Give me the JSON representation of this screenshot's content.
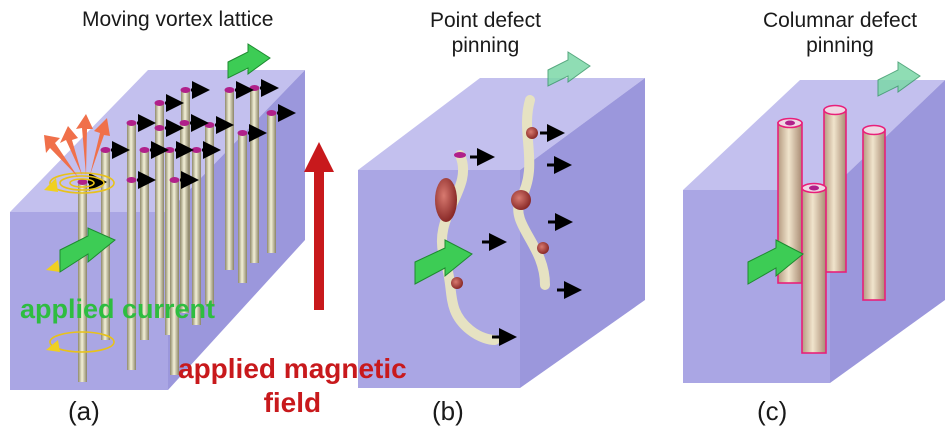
{
  "panels": [
    {
      "title": "Moving vortex lattice",
      "label": "(a)"
    },
    {
      "title_line1": "Point defect",
      "title_line2": "pinning",
      "label": "(b)"
    },
    {
      "title_line1": "Columnar defect",
      "title_line2": "pinning",
      "label": "(c)"
    }
  ],
  "annotations": {
    "current": "applied current",
    "field_line1": "applied magnetic",
    "field_line2": "field"
  },
  "colors": {
    "slab_face": "#aaa6e4",
    "slab_top": "#c3c0ee",
    "slab_side": "#9b97dc",
    "current_arrow": "#33c24a",
    "field_arrow": "#c8191c",
    "field_text": "#c8191c",
    "current_text": "#2ebd40",
    "vortex_core": "#b0208a",
    "column_outline": "#e8207a",
    "pin_defect": "#a8403a",
    "vortex_motion_arrow": "#000000",
    "heat_arrow": "#f0704a"
  }
}
